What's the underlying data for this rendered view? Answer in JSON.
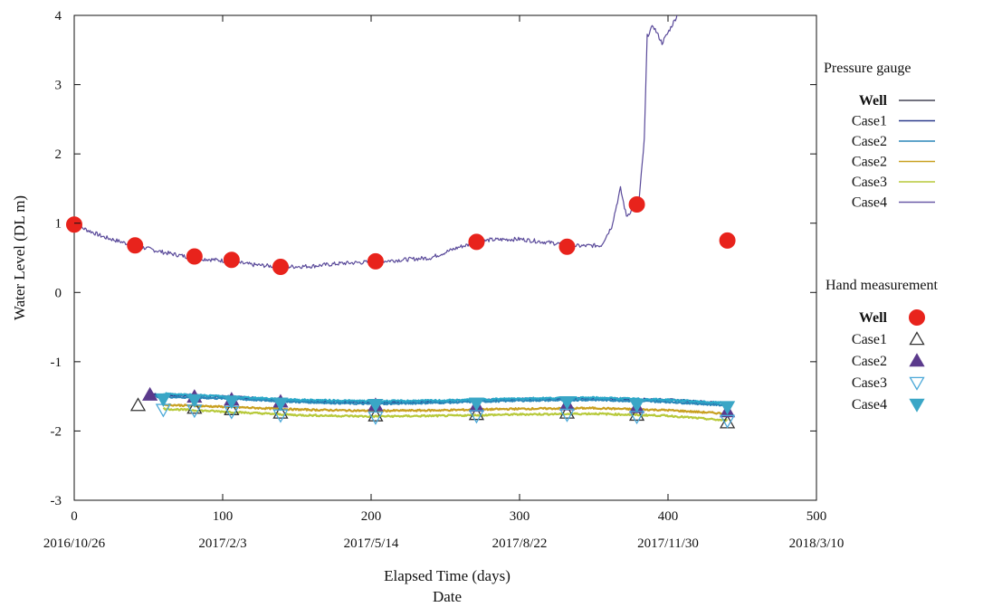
{
  "chart_data": {
    "type": "line",
    "xlabel": "Elapsed Time (days)",
    "xlabel2": "Date",
    "ylabel": "Water Level (DL m)",
    "xlim": [
      0,
      500
    ],
    "ylim": [
      -3,
      4
    ],
    "xticks": [
      0,
      100,
      200,
      300,
      400,
      500
    ],
    "yticks": [
      -3,
      -2,
      -1,
      0,
      1,
      2,
      3,
      4
    ],
    "date_ticks": [
      {
        "x": 0,
        "label": "2016/10/26"
      },
      {
        "x": 100,
        "label": "2017/2/3"
      },
      {
        "x": 200,
        "label": "2017/5/14"
      },
      {
        "x": 300,
        "label": "2017/8/22"
      },
      {
        "x": 400,
        "label": "2017/11/30"
      },
      {
        "x": 500,
        "label": "2018/3/10"
      }
    ],
    "grid": false,
    "legend_groups": [
      {
        "title": "Pressure gauge",
        "entries": [
          {
            "label": "Well",
            "color": "#444455",
            "marker": "line"
          },
          {
            "label": "Case1",
            "color": "#2b3a8c",
            "marker": "line"
          },
          {
            "label": "Case2",
            "color": "#2a86b8",
            "marker": "line"
          },
          {
            "label": "Case2",
            "color": "#c8a020",
            "marker": "line"
          },
          {
            "label": "Case3",
            "color": "#b7c93a",
            "marker": "line"
          },
          {
            "label": "Case4",
            "color": "#6a5aa8",
            "marker": "line"
          }
        ]
      },
      {
        "title": "Hand measurement",
        "entries": [
          {
            "label": "Well",
            "color": "#e8231c",
            "marker": "circle"
          },
          {
            "label": "Case1",
            "color": "#333333",
            "marker": "triangle-open"
          },
          {
            "label": "Case2",
            "color": "#5b3a8c",
            "marker": "triangle"
          },
          {
            "label": "Case3",
            "color": "#4aa8d8",
            "marker": "triangle-down-open"
          },
          {
            "label": "Case4",
            "color": "#3aa6c6",
            "marker": "triangle-down"
          }
        ]
      }
    ],
    "series": [
      {
        "label": "Well",
        "kind": "line",
        "color": "#5a4a9a",
        "noise": 0.03,
        "x": [
          0,
          20,
          40,
          60,
          80,
          100,
          120,
          140,
          160,
          180,
          200,
          220,
          240,
          260,
          280,
          300,
          320,
          340,
          355,
          362,
          368,
          372,
          376,
          380,
          384,
          386,
          390,
          396,
          400,
          405,
          408
        ],
        "y": [
          0.98,
          0.8,
          0.68,
          0.58,
          0.5,
          0.46,
          0.4,
          0.37,
          0.38,
          0.42,
          0.44,
          0.47,
          0.5,
          0.66,
          0.76,
          0.77,
          0.72,
          0.67,
          0.68,
          0.95,
          1.5,
          1.1,
          1.2,
          1.2,
          2.2,
          3.7,
          3.85,
          3.6,
          3.75,
          3.95,
          4.1
        ]
      },
      {
        "label": "Case1",
        "kind": "line",
        "color": "#2b3a8c",
        "noise": 0.012,
        "x": [
          52,
          100,
          150,
          200,
          250,
          300,
          350,
          400,
          440
        ],
        "y": [
          -1.47,
          -1.5,
          -1.56,
          -1.59,
          -1.57,
          -1.54,
          -1.53,
          -1.55,
          -1.6
        ]
      },
      {
        "label": "Case2",
        "kind": "line",
        "color": "#2a86b8",
        "noise": 0.012,
        "x": [
          52,
          100,
          150,
          200,
          250,
          300,
          350,
          400,
          440
        ],
        "y": [
          -1.5,
          -1.53,
          -1.58,
          -1.61,
          -1.59,
          -1.56,
          -1.55,
          -1.58,
          -1.63
        ]
      },
      {
        "label": "Case2",
        "kind": "line",
        "color": "#c8a020",
        "noise": 0.012,
        "x": [
          60,
          100,
          150,
          200,
          250,
          300,
          350,
          400,
          440
        ],
        "y": [
          -1.62,
          -1.65,
          -1.69,
          -1.71,
          -1.7,
          -1.68,
          -1.67,
          -1.7,
          -1.75
        ]
      },
      {
        "label": "Case3",
        "kind": "line",
        "color": "#b7c93a",
        "noise": 0.012,
        "x": [
          60,
          100,
          150,
          200,
          250,
          300,
          350,
          400,
          440
        ],
        "y": [
          -1.68,
          -1.72,
          -1.77,
          -1.79,
          -1.78,
          -1.76,
          -1.75,
          -1.78,
          -1.85
        ]
      },
      {
        "label": "Case4",
        "kind": "line",
        "color": "#2aa8c8",
        "noise": 0.012,
        "x": [
          60,
          100,
          150,
          200,
          250,
          300,
          350,
          400,
          440
        ],
        "y": [
          -1.46,
          -1.5,
          -1.55,
          -1.57,
          -1.56,
          -1.53,
          -1.52,
          -1.55,
          -1.6
        ]
      },
      {
        "label": "Well",
        "kind": "scatter",
        "marker": "circle",
        "color": "#e8231c",
        "x": [
          0,
          41,
          81,
          106,
          139,
          203,
          271,
          332,
          379,
          440
        ],
        "y": [
          0.98,
          0.68,
          0.52,
          0.47,
          0.37,
          0.45,
          0.73,
          0.66,
          1.27,
          0.75
        ]
      },
      {
        "label": "Case1",
        "kind": "scatter",
        "marker": "triangle-open",
        "color": "#333333",
        "x": [
          43,
          81,
          106,
          139,
          203,
          271,
          332,
          379,
          440
        ],
        "y": [
          -1.63,
          -1.67,
          -1.69,
          -1.74,
          -1.78,
          -1.76,
          -1.74,
          -1.77,
          -1.88
        ]
      },
      {
        "label": "Case2",
        "kind": "scatter",
        "marker": "triangle",
        "color": "#5b3a8c",
        "x": [
          51,
          81,
          106,
          139,
          203,
          271,
          332,
          379,
          440
        ],
        "y": [
          -1.48,
          -1.51,
          -1.55,
          -1.58,
          -1.63,
          -1.64,
          -1.62,
          -1.66,
          -1.72
        ]
      },
      {
        "label": "Case3",
        "kind": "scatter",
        "marker": "triangle-down-open",
        "color": "#4aa8d8",
        "x": [
          60,
          81,
          106,
          139,
          203,
          271,
          332,
          379,
          440
        ],
        "y": [
          -1.69,
          -1.7,
          -1.72,
          -1.77,
          -1.8,
          -1.78,
          -1.76,
          -1.79,
          -1.85
        ]
      },
      {
        "label": "Case4",
        "kind": "scatter",
        "marker": "triangle-down",
        "color": "#3aa6c6",
        "x": [
          60,
          81,
          106,
          139,
          203,
          271,
          332,
          379,
          440
        ],
        "y": [
          -1.54,
          -1.55,
          -1.57,
          -1.6,
          -1.62,
          -1.6,
          -1.58,
          -1.62,
          -1.65
        ]
      }
    ]
  }
}
